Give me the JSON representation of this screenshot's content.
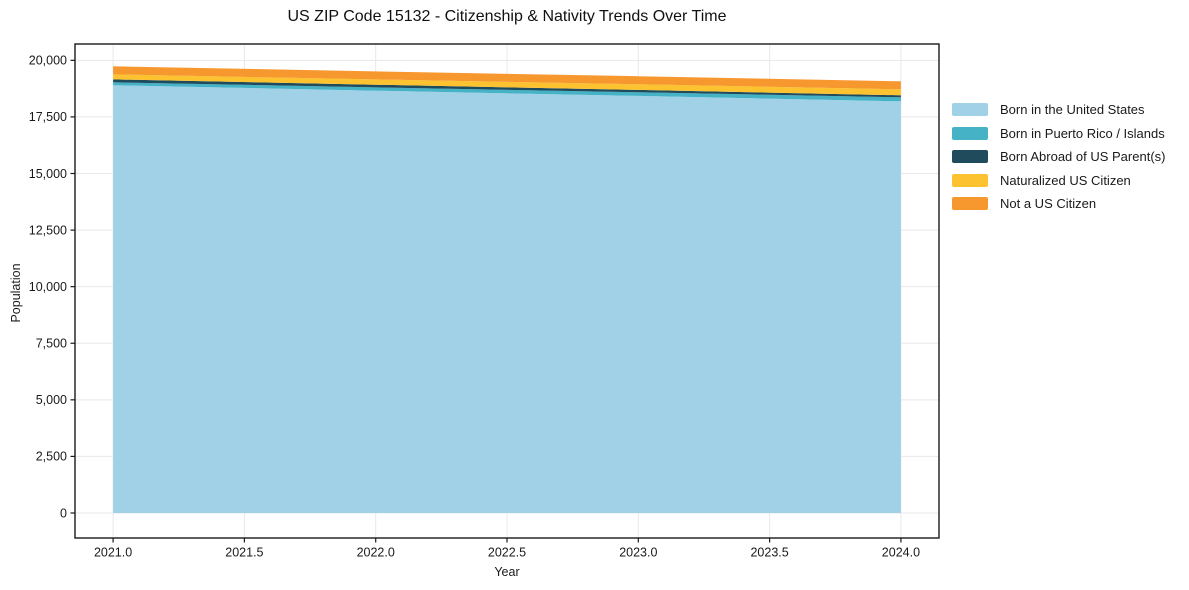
{
  "chart_data": {
    "type": "area",
    "stacked": true,
    "title": "US ZIP Code 15132 - Citizenship & Nativity Trends Over Time",
    "xlabel": "Year",
    "ylabel": "Population",
    "x": [
      2021,
      2022,
      2023,
      2024
    ],
    "series": [
      {
        "name": "Born in the United States",
        "color": "#a1d1e7",
        "values": [
          18900,
          18660,
          18430,
          18190
        ]
      },
      {
        "name": "Born in Puerto Rico / Islands",
        "color": "#45b2c6",
        "values": [
          130,
          145,
          160,
          175
        ]
      },
      {
        "name": "Born Abroad of US Parent(s)",
        "color": "#1f4b5c",
        "values": [
          130,
          117,
          103,
          90
        ]
      },
      {
        "name": "Naturalized US Citizen",
        "color": "#fcc230",
        "values": [
          220,
          235,
          250,
          265
        ]
      },
      {
        "name": "Not a US Citizen",
        "color": "#f7982f",
        "values": [
          355,
          355,
          355,
          355
        ]
      }
    ],
    "x_ticks": [
      2021,
      2021.5,
      2022,
      2022.5,
      2023,
      2023.5,
      2024
    ],
    "x_tick_labels": [
      "2021.0",
      "2021.5",
      "2022.0",
      "2022.5",
      "2023.0",
      "2023.5",
      "2024.0"
    ],
    "y_ticks": [
      0,
      2500,
      5000,
      7500,
      10000,
      12500,
      15000,
      17500,
      20000
    ],
    "y_tick_labels": [
      "0",
      "2,500",
      "5,000",
      "7,500",
      "10,000",
      "12,500",
      "15,000",
      "17,500",
      "20,000"
    ],
    "xlim": [
      2020.855,
      2024.145
    ],
    "ylim": [
      -1105,
      20722
    ],
    "grid": true,
    "grid_color": "#e8e8e8",
    "frame_color": "#1a1a1a",
    "legend_position": "right"
  }
}
